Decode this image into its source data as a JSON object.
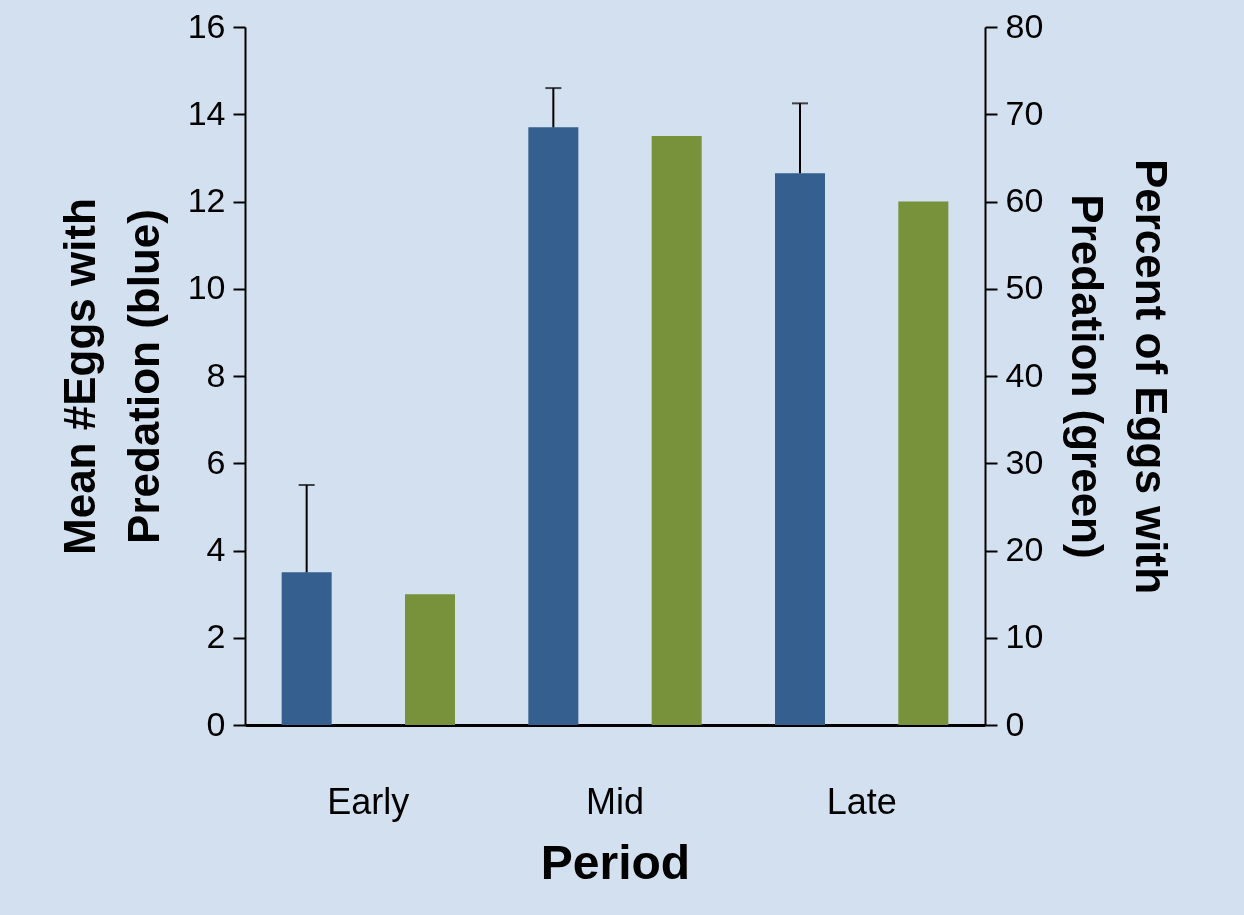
{
  "chart_data": {
    "type": "bar",
    "xlabel": "Period",
    "ylabel": "Mean #Eggs with\nPredation  (blue)",
    "y2label": "Percent of Eggs with\nPredation  (green)",
    "categories": [
      "Early",
      "Mid",
      "Late"
    ],
    "series": [
      {
        "color": "#355f8f",
        "values": [
          3.5,
          13.7,
          12.65
        ],
        "errors": [
          2.0,
          0.9,
          1.6
        ]
      },
      {
        "color": "#77923b",
        "values": [
          15,
          67.5,
          60
        ],
        "axis": "y2"
      }
    ],
    "ylim": [
      0,
      16
    ],
    "yticks": [
      0,
      2,
      4,
      6,
      8,
      10,
      12,
      14,
      16
    ],
    "y2lim": [
      0,
      80
    ],
    "y2ticks": [
      0,
      10,
      20,
      30,
      40,
      50,
      60,
      70,
      80
    ],
    "grid": false
  }
}
